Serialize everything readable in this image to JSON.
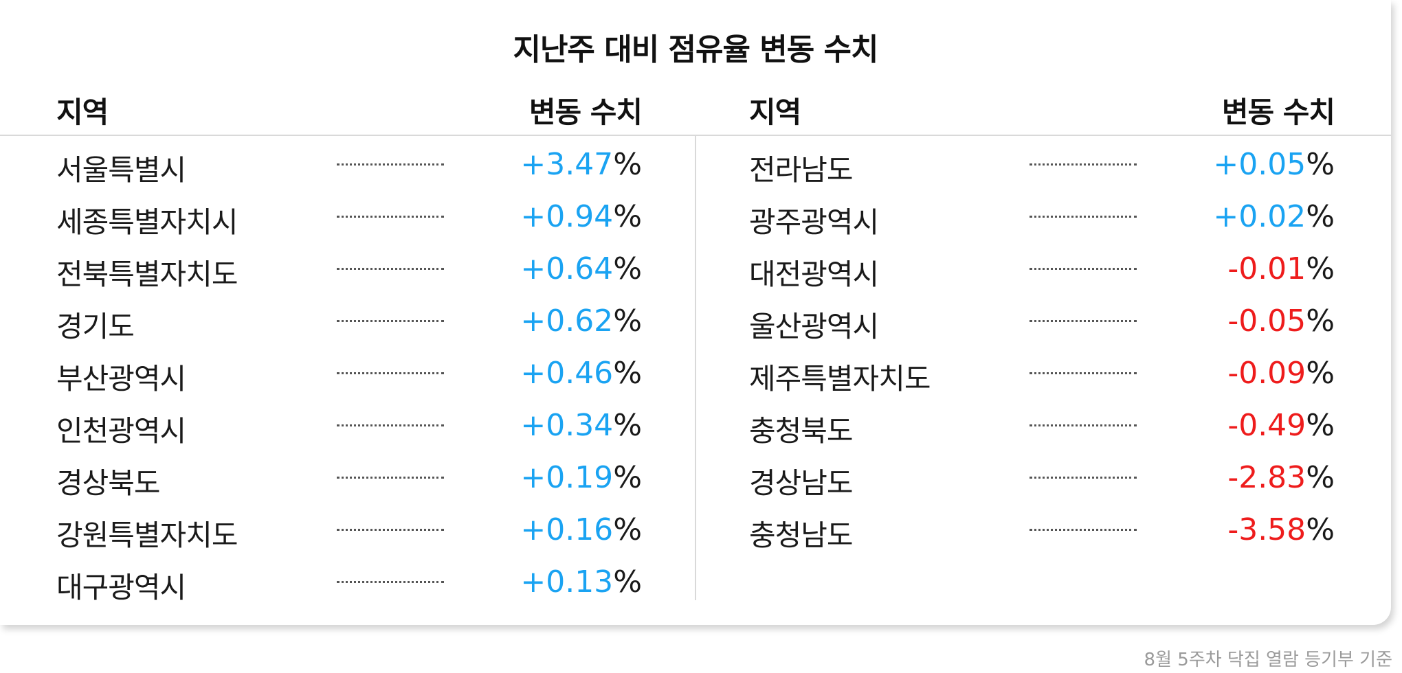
{
  "title": "지난주 대비 점유율 변동 수치",
  "headers": {
    "region": "지역",
    "change": "변동 수치"
  },
  "percent_sign": "%",
  "left_rows": [
    {
      "region": "서울특별시",
      "value": "+3.47",
      "sign": "pos"
    },
    {
      "region": "세종특별자치시",
      "value": "+0.94",
      "sign": "pos"
    },
    {
      "region": "전북특별자치도",
      "value": "+0.64",
      "sign": "pos"
    },
    {
      "region": "경기도",
      "value": "+0.62",
      "sign": "pos"
    },
    {
      "region": "부산광역시",
      "value": "+0.46",
      "sign": "pos"
    },
    {
      "region": "인천광역시",
      "value": "+0.34",
      "sign": "pos"
    },
    {
      "region": "경상북도",
      "value": "+0.19",
      "sign": "pos"
    },
    {
      "region": "강원특별자치도",
      "value": "+0.16",
      "sign": "pos"
    },
    {
      "region": "대구광역시",
      "value": "+0.13",
      "sign": "pos"
    }
  ],
  "right_rows": [
    {
      "region": "전라남도",
      "value": "+0.05",
      "sign": "pos"
    },
    {
      "region": "광주광역시",
      "value": "+0.02",
      "sign": "pos"
    },
    {
      "region": "대전광역시",
      "value": "-0.01",
      "sign": "neg"
    },
    {
      "region": "울산광역시",
      "value": "-0.05",
      "sign": "neg"
    },
    {
      "region": "제주특별자치도",
      "value": "-0.09",
      "sign": "neg"
    },
    {
      "region": "충청북도",
      "value": "-0.49",
      "sign": "neg"
    },
    {
      "region": "경상남도",
      "value": "-2.83",
      "sign": "neg"
    },
    {
      "region": "충청남도",
      "value": "-3.58",
      "sign": "neg"
    }
  ],
  "colors": {
    "positive": "#1aa3f2",
    "negative": "#ee1c1c"
  },
  "footnote": "8월 5주차 닥집 열람 등기부 기준"
}
